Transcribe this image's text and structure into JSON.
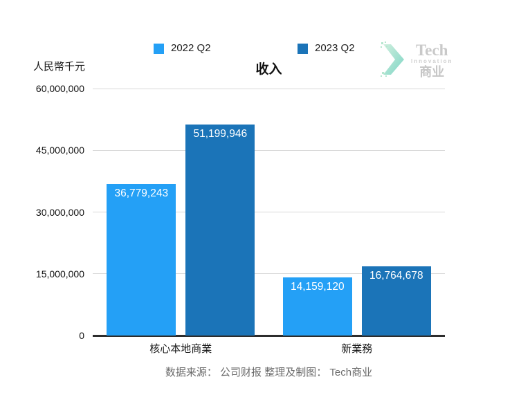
{
  "header": {
    "unit_label": "人民幣千元",
    "title": "收入"
  },
  "logo": {
    "line1": "Tech",
    "line2": "Innovation",
    "line3": "商业"
  },
  "chart_data": {
    "type": "bar",
    "title": "收入",
    "ylabel": "人民幣千元",
    "categories": [
      "核心本地商業",
      "新業務"
    ],
    "series": [
      {
        "name": "2022 Q2",
        "color": "#24A0F6",
        "values": [
          36779243,
          14159120
        ],
        "labels": [
          "36,779,243",
          "14,159,120"
        ]
      },
      {
        "name": "2023 Q2",
        "color": "#1B74B8",
        "values": [
          51199946,
          16764678
        ],
        "labels": [
          "51,199,946",
          "16,764,678"
        ]
      }
    ],
    "ylim": [
      0,
      60000000
    ],
    "yticks": [
      {
        "value": 0,
        "label": "0"
      },
      {
        "value": 15000000,
        "label": "15,000,000"
      },
      {
        "value": 30000000,
        "label": "30,000,000"
      },
      {
        "value": 45000000,
        "label": "45,000,000"
      },
      {
        "value": 60000000,
        "label": "60,000,000"
      }
    ],
    "grid": true,
    "legend_position": "top"
  },
  "footer": {
    "source": "数据来源： 公司财报 整理及制图： Tech商业"
  }
}
